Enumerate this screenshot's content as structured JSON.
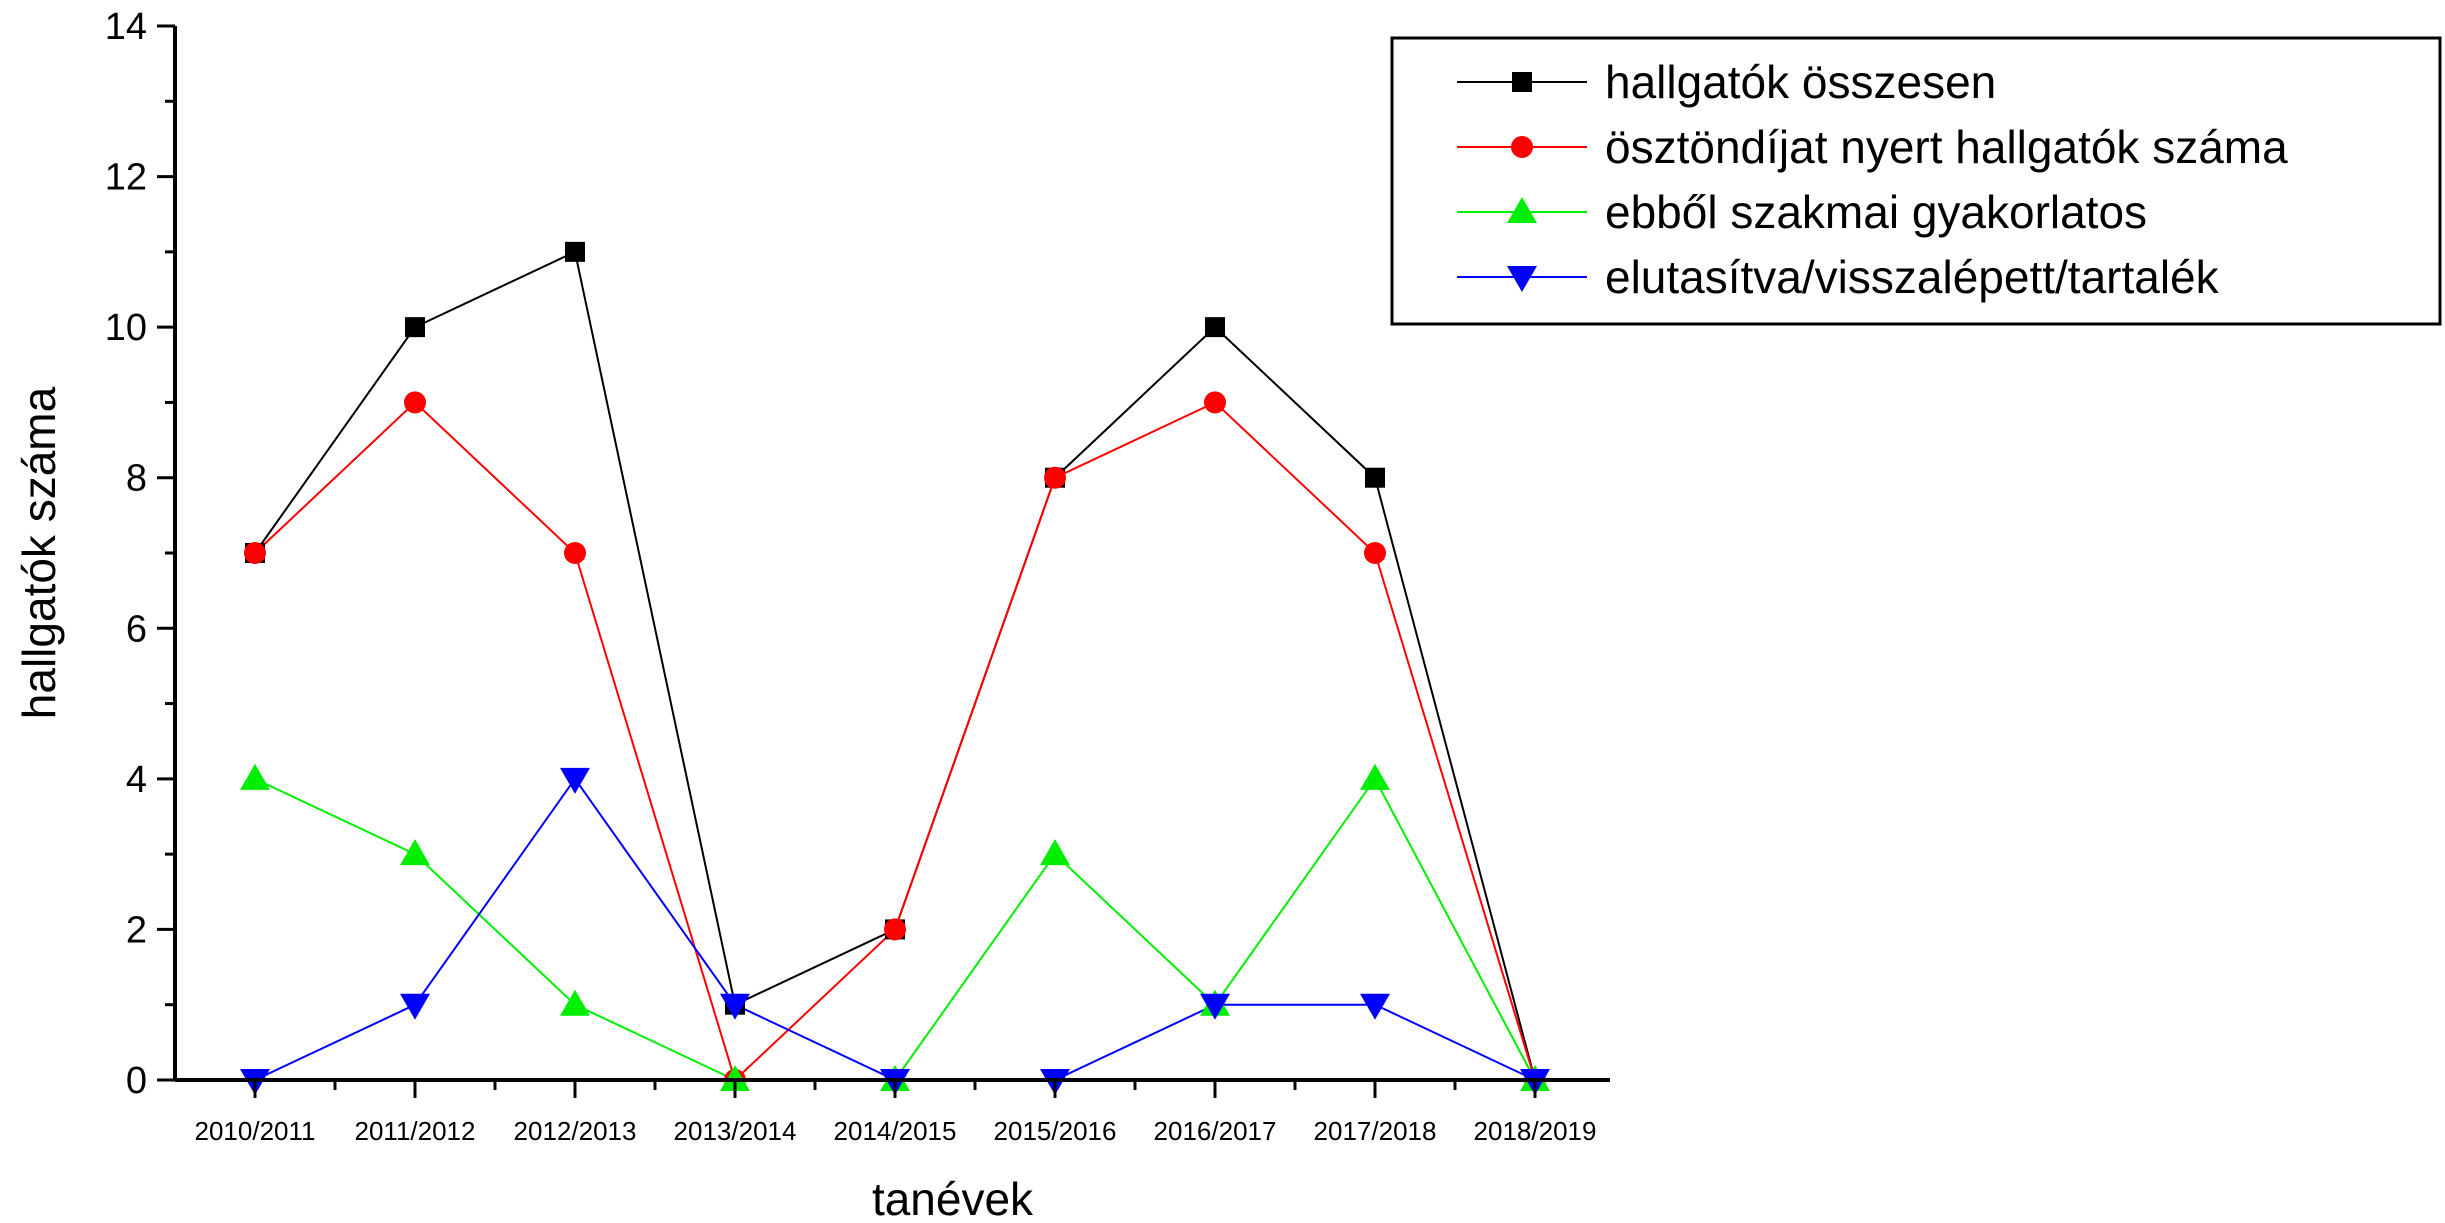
{
  "chart_data": {
    "type": "line",
    "xlabel": "tanévek",
    "ylabel": "hallgatók száma",
    "ylim": [
      0,
      14
    ],
    "yticks": [
      0,
      2,
      4,
      6,
      8,
      10,
      12,
      14
    ],
    "categories": [
      "2010/2011",
      "2011/2012",
      "2012/2013",
      "2013/2014",
      "2014/2015",
      "2015/2016",
      "2016/2017",
      "2017/2018",
      "2018/2019"
    ],
    "legend_position": "top-right",
    "grid": false,
    "series": [
      {
        "name": "hallgatók összesen",
        "color": "#000000",
        "marker": "square",
        "values": [
          7,
          10,
          11,
          1,
          2,
          8,
          10,
          8,
          0
        ]
      },
      {
        "name": "ösztöndíjat nyert hallgatók száma",
        "color": "#ff0000",
        "marker": "circle",
        "values": [
          7,
          9,
          7,
          0,
          2,
          8,
          9,
          7,
          0
        ]
      },
      {
        "name": "ebből szakmai gyakorlatos",
        "color": "#00ee00",
        "marker": "triangle-up",
        "values": [
          4,
          3,
          1,
          0,
          0,
          3,
          1,
          4,
          0
        ]
      },
      {
        "name": "elutasítva/visszalépett/tartalék",
        "color": "#0000ff",
        "marker": "triangle-down",
        "values": [
          0,
          1,
          4,
          1,
          0,
          0,
          1,
          1,
          0
        ]
      }
    ]
  }
}
